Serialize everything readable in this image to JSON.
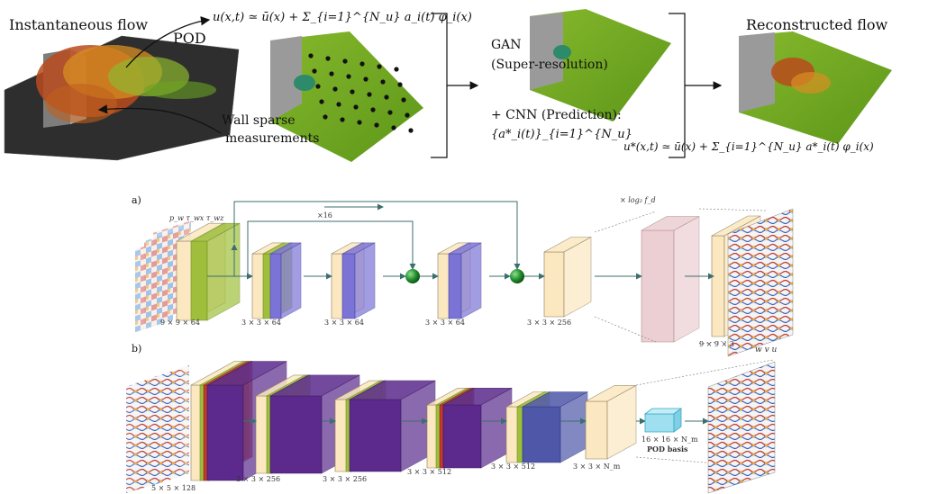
{
  "top": {
    "instantaneous_flow": "Instantaneous flow",
    "pod": "POD",
    "pod_equation": "u(x,t) ≃ ū(x) + Σ_{i=1}^{N_u} a_i(t) φ_i(x)",
    "wall_sparse": "Wall sparse",
    "measurements": "measurements",
    "gan": "GAN",
    "super_resolution": "(Super-resolution)",
    "cnn_prediction": "+ CNN (Prediction):",
    "coefficients": "{a*_i(t)}_{i=1}^{N_u}",
    "reconstructed_flow": "Reconstructed flow",
    "reconstruction_equation": "u*(x,t) ≃ ū(x) + Σ_{i=1}^{N_u} a*_i(t) φ_i(x)"
  },
  "panel_a": {
    "label": "a)",
    "input_label": "p_w  τ_wx  τ_wz",
    "repeat": "×16",
    "upsample": "× log₂ f_d",
    "blocks": [
      "9 × 9 × 64",
      "3 × 3 × 64",
      "3 × 3 × 64",
      "3 × 3 × 64",
      "3 × 3 × 256",
      "9 × 9 × 3"
    ]
  },
  "panel_b": {
    "label": "b)",
    "output_label": "w  v  u",
    "blocks": [
      "5 × 5 × 128",
      "3 × 3 × 256",
      "3 × 3 × 256",
      "3 × 3 × 512",
      "3 × 3 × 512",
      "3 × 3 × N_m"
    ],
    "pod_basis_size": "16 × 16 × N_m",
    "pod_basis": "POD basis"
  },
  "colors": {
    "block_fill": "#fbe8c0",
    "green_block": "#9fbf3c",
    "blue_block": "#7b73d6",
    "purple_block": "#5b2a8c",
    "pink_block": "#eccfd2",
    "arrow": "#3c6e6e",
    "node": "#1e8a2a",
    "plate_green": "#6aa321",
    "wall_grey": "#9a9a9a"
  }
}
